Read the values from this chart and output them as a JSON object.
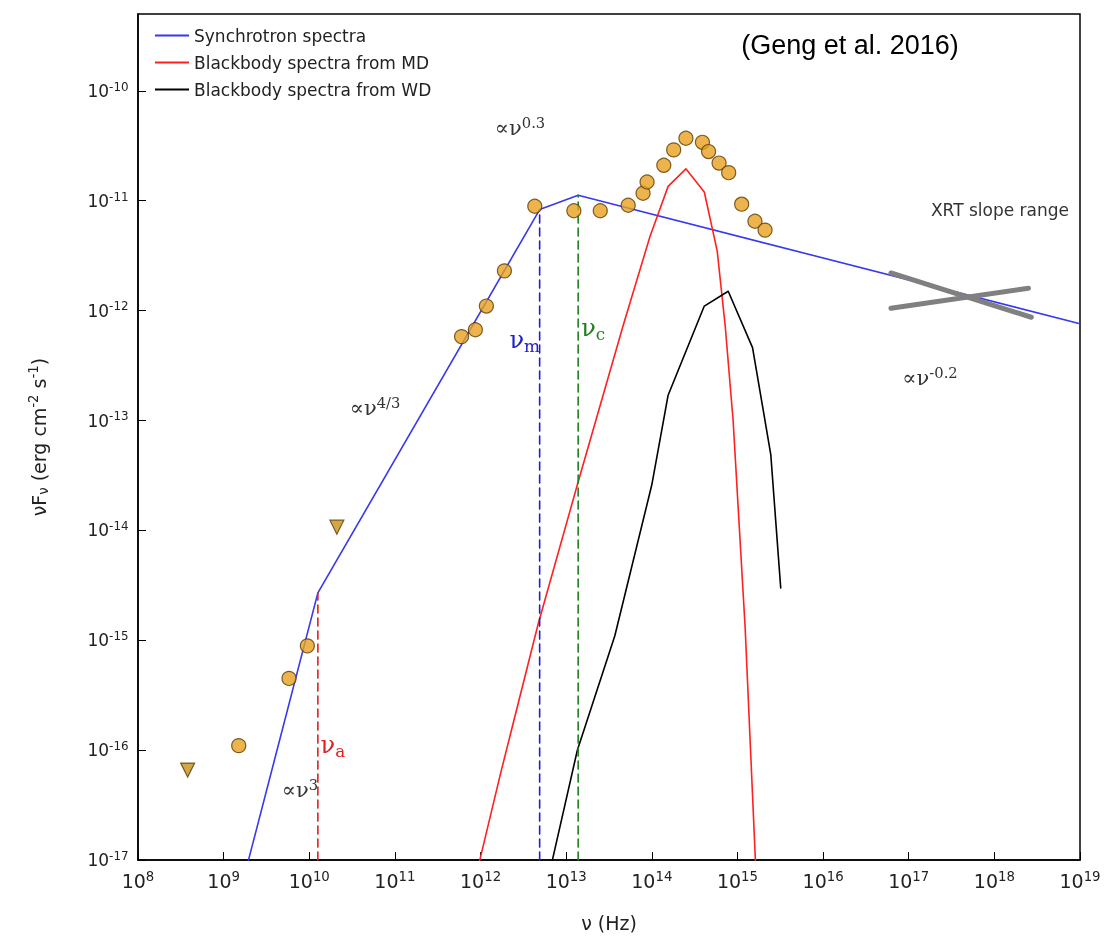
{
  "chart_data": {
    "type": "line",
    "xlabel": "ν (Hz)",
    "ylabel": "νF$_{ν}$ (erg cm$^{-2}$ s$^{-1}$)",
    "log": "xy",
    "legend": "top left",
    "xlim": [
      100000000.0,
      1e+19
    ],
    "ylim": [
      1e-17,
      5e-10
    ],
    "xticks": [
      {
        "value": 100000000.0,
        "label": "10$^{8}$"
      },
      {
        "value": 1000000000.0,
        "label": "10$^{9}$"
      },
      {
        "value": 10000000000.0,
        "label": "10$^{10}$"
      },
      {
        "value": 100000000000.0,
        "label": "10$^{11}$"
      },
      {
        "value": 1000000000000.0,
        "label": "10$^{12}$"
      },
      {
        "value": 10000000000000.0,
        "label": "10$^{13}$"
      },
      {
        "value": 100000000000000.0,
        "label": "10$^{14}$"
      },
      {
        "value": 1000000000000000.0,
        "label": "10$^{15}$"
      },
      {
        "value": 1e+16,
        "label": "10$^{16}$"
      },
      {
        "value": 1e+17,
        "label": "10$^{17}$"
      },
      {
        "value": 1e+18,
        "label": "10$^{18}$"
      },
      {
        "value": 1e+19,
        "label": "10$^{19}$"
      }
    ],
    "yticks": [
      {
        "value": 1e-17,
        "label": "10$^{-17}$"
      },
      {
        "value": 1e-16,
        "label": "10$^{-16}$"
      },
      {
        "value": 1e-15,
        "label": "10$^{-15}$"
      },
      {
        "value": 1e-14,
        "label": "10$^{-14}$"
      },
      {
        "value": 1e-13,
        "label": "10$^{-13}$"
      },
      {
        "value": 1e-12,
        "label": "10$^{-12}$"
      },
      {
        "value": 1e-11,
        "label": "10$^{-11}$"
      },
      {
        "value": 1e-10,
        "label": "10$^{-10}$"
      }
    ],
    "series": [
      {
        "name": "Synchrotron spectra",
        "color": "#3838ee",
        "x": [
          1950000000.0,
          12600000000.0,
          4900000000000.0,
          13800000000000.0,
          1e+19
        ],
        "values": [
          1e-17,
          2.7e-15,
          8.3e-12,
          1.12e-11,
          7.6e-13
        ]
      },
      {
        "name": "Blackbody spectra from MD",
        "color": "#ff2020",
        "x": [
          980000000000.0,
          1700000000000.0,
          4700000000000.0,
          13500000000000.0,
          46000000000000.0,
          95000000000000.0,
          155000000000000.0,
          250000000000000.0,
          410000000000000.0,
          580000000000000.0,
          720000000000000.0,
          890000000000000.0,
          1230000000000000.0,
          1620000000000000.0
        ],
        "values": [
          1e-17,
          6e-17,
          1.4e-15,
          2.6e-14,
          7.2e-13,
          4.7e-12,
          1.35e-11,
          1.95e-11,
          1.2e-11,
          3.5e-12,
          7.2e-13,
          1e-13,
          1.3e-15,
          1e-17
        ]
      },
      {
        "name": "Blackbody spectra from WD",
        "color": "#000000",
        "x": [
          6900000000000.0,
          13500000000000.0,
          37000000000000.0,
          100000000000000.0,
          155000000000000.0,
          410000000000000.0,
          780000000000000.0,
          1500000000000000.0,
          2450000000000000.0,
          3200000000000000.0
        ],
        "values": [
          1e-17,
          1e-16,
          1.1e-15,
          2.6e-14,
          1.7e-13,
          1.1e-12,
          1.5e-12,
          4.6e-13,
          4.9e-14,
          3e-15
        ]
      },
      {
        "name": "ν$_{a}$",
        "type": "line",
        "color": "#e02020",
        "line_style": "dashed",
        "x": [
          12600000000.0,
          12600000000.0
        ],
        "values": [
          1e-17,
          2.7e-15
        ]
      },
      {
        "name": "ν$_{m}$",
        "type": "line",
        "color": "#2020d0",
        "line_style": "dashed",
        "x": [
          4900000000000.0,
          4900000000000.0
        ],
        "values": [
          1e-17,
          8.3e-12
        ]
      },
      {
        "name": "ν$_{c}$",
        "type": "line",
        "color": "#208020",
        "line_style": "dashed",
        "x": [
          13800000000000.0,
          13800000000000.0
        ],
        "values": [
          1e-17,
          1.12e-11
        ]
      },
      {
        "type": "line",
        "color": "#808080",
        "x": [
          6.2e+16,
          2.7e+18
        ],
        "values": [
          2.2e-12,
          8.7e-13
        ]
      },
      {
        "type": "line",
        "color": "#808080",
        "x": [
          6.2e+16,
          2.5e+18
        ],
        "values": [
          1.05e-12,
          1.6e-12
        ]
      },
      {
        "type": "scatter",
        "marker": "circle",
        "color": "#e8a020",
        "x": [
          1500000000.0,
          5800000000.0,
          9500000000.0,
          600000000000.0,
          870000000000.0,
          1170000000000.0,
          1900000000000.0,
          4300000000000.0,
          12300000000000.0,
          25000000000000.0,
          53000000000000.0,
          79000000000000.0,
          88000000000000.0,
          138000000000000.0,
          180000000000000.0,
          250000000000000.0,
          390000000000000.0,
          460000000000000.0,
          610000000000000.0,
          790000000000000.0,
          1120000000000000.0,
          1600000000000000.0,
          2100000000000000.0
        ],
        "values": [
          1.1e-16,
          4.5e-16,
          8.9e-16,
          5.8e-13,
          6.7e-13,
          1.1e-12,
          2.3e-12,
          8.9e-12,
          8.1e-12,
          8.1e-12,
          9.1e-12,
          1.17e-11,
          1.48e-11,
          2.1e-11,
          2.9e-11,
          3.7e-11,
          3.4e-11,
          2.8e-11,
          2.2e-11,
          1.8e-11,
          9.3e-12,
          6.5e-12,
          5.4e-12
        ]
      },
      {
        "type": "scatter",
        "marker": "triangle",
        "color": "#c8901a",
        "x": [
          380000000.0,
          21000000000.0
        ],
        "values": [
          6.6e-17,
          1.07e-14
        ]
      }
    ],
    "annotations": [
      "(Geng et al. 2016)",
      "XRT slope range",
      "∝ν$^{0.3}$",
      "∝ν$^{4/3}$",
      "∝ν$^{3}$",
      "∝ν$^{-0.2}$"
    ]
  }
}
